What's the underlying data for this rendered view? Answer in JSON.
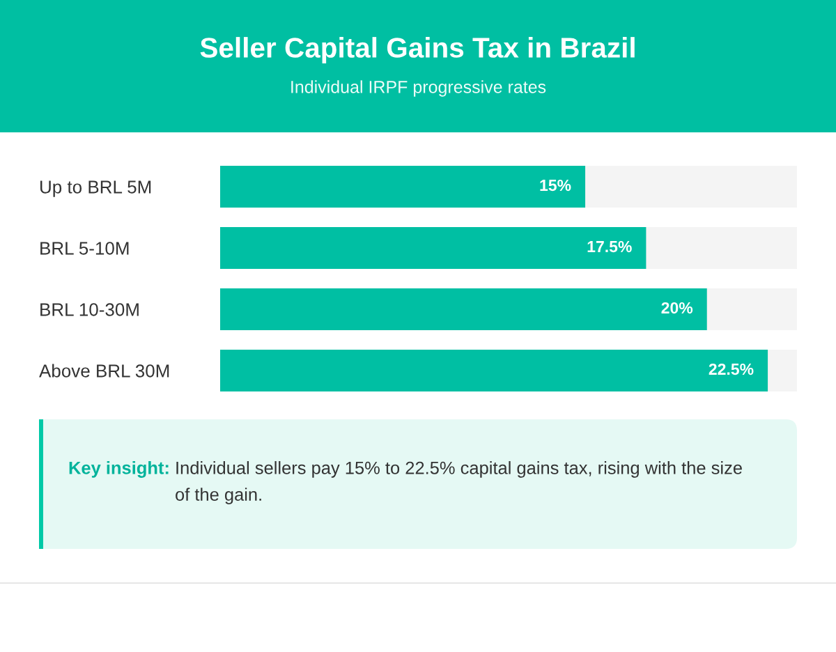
{
  "chart_data": {
    "type": "bar",
    "orientation": "horizontal",
    "title": "Seller Capital Gains Tax in Brazil",
    "subtitle": "Individual IRPF progressive rates",
    "categories": [
      "Up to BRL 5M",
      "BRL 5-10M",
      "BRL 10-30M",
      "Above BRL 30M"
    ],
    "values": [
      15,
      17.5,
      20,
      22.5
    ],
    "value_labels": [
      "15%",
      "17.5%",
      "20%",
      "22.5%"
    ],
    "color": "#00bfa3",
    "xlim": [
      0,
      23.7
    ],
    "tick_labels": "y",
    "annotations": [
      "Key insight:",
      "Individual sellers pay 15% to 22.5% capital gains tax, rising with the size of the gain."
    ]
  }
}
